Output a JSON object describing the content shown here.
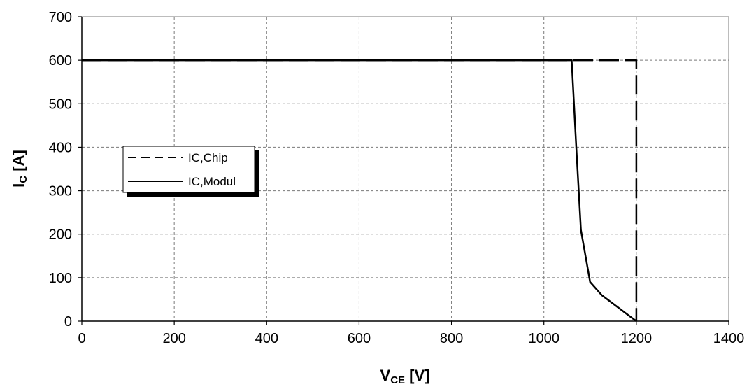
{
  "chart_data": {
    "type": "line",
    "title": "",
    "xlabel": {
      "main": "V",
      "sub": "CE",
      "unit": " [V]"
    },
    "ylabel": {
      "main": "I",
      "sub": "C",
      "unit": " [A]"
    },
    "xlim": [
      0,
      1400
    ],
    "ylim": [
      0,
      700
    ],
    "xticks": [
      0,
      200,
      400,
      600,
      800,
      1000,
      1200,
      1400
    ],
    "yticks": [
      0,
      100,
      200,
      300,
      400,
      500,
      600,
      700
    ],
    "grid": true,
    "legend_position": "center-left",
    "series": [
      {
        "name": "IC,Chip",
        "style": "dashed",
        "color": "#000000",
        "x": [
          0,
          1200,
          1200
        ],
        "y": [
          600,
          600,
          0
        ]
      },
      {
        "name": "IC,Modul",
        "style": "solid",
        "color": "#000000",
        "x": [
          0,
          1060,
          1070,
          1080,
          1100,
          1125,
          1150,
          1175,
          1200
        ],
        "y": [
          600,
          600,
          400,
          210,
          90,
          60,
          40,
          20,
          0
        ]
      }
    ]
  }
}
